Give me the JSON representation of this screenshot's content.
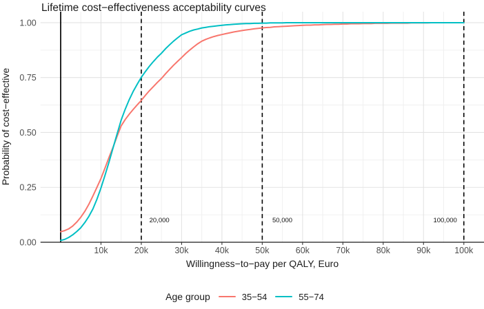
{
  "chart_data": {
    "type": "line",
    "title": "Lifetime cost−effectiveness acceptability curves",
    "xlabel": "Willingness−to−pay per QALY, Euro",
    "ylabel": "Probability of cost−effective",
    "x_range": [
      -5000,
      105000
    ],
    "y_range": [
      0,
      1.05
    ],
    "x_start": 0,
    "x_step": 1000,
    "grid": {
      "on": true,
      "x_minor_step": 5000,
      "y_minor": [
        0.125,
        0.375,
        0.625,
        0.875
      ]
    },
    "x_ticks": [
      {
        "v": 10000,
        "label": "10k"
      },
      {
        "v": 20000,
        "label": "20k"
      },
      {
        "v": 30000,
        "label": "30k"
      },
      {
        "v": 40000,
        "label": "40k"
      },
      {
        "v": 50000,
        "label": "50k"
      },
      {
        "v": 60000,
        "label": "60k"
      },
      {
        "v": 70000,
        "label": "70k"
      },
      {
        "v": 80000,
        "label": "80k"
      },
      {
        "v": 90000,
        "label": "90k"
      },
      {
        "v": 100000,
        "label": "100k"
      }
    ],
    "y_ticks": [
      {
        "v": 0,
        "label": "0.00"
      },
      {
        "v": 0.25,
        "label": "0.25"
      },
      {
        "v": 0.5,
        "label": "0.50"
      },
      {
        "v": 0.75,
        "label": "0.75"
      },
      {
        "v": 1,
        "label": "1.00"
      }
    ],
    "reference_lines": {
      "solid": [
        0
      ],
      "dashed": [
        20000,
        50000,
        100000
      ]
    },
    "annotations": [
      {
        "text": "20,000",
        "x": 22000,
        "y": 0.1,
        "anchor": "start"
      },
      {
        "text": "50,000",
        "x": 52500,
        "y": 0.1,
        "anchor": "start"
      },
      {
        "text": "100,000",
        "x": 98300,
        "y": 0.1,
        "anchor": "end"
      }
    ],
    "legend": {
      "title": "Age group",
      "position": "bottom"
    },
    "series": [
      {
        "name": "35−54",
        "color": "#F8766D",
        "values": [
          0.048,
          0.053,
          0.061,
          0.074,
          0.092,
          0.114,
          0.141,
          0.173,
          0.211,
          0.25,
          0.291,
          0.338,
          0.387,
          0.433,
          0.483,
          0.53,
          0.559,
          0.583,
          0.605,
          0.626,
          0.646,
          0.669,
          0.69,
          0.709,
          0.728,
          0.746,
          0.767,
          0.787,
          0.806,
          0.824,
          0.841,
          0.859,
          0.875,
          0.89,
          0.904,
          0.916,
          0.924,
          0.931,
          0.937,
          0.942,
          0.946,
          0.95,
          0.954,
          0.958,
          0.961,
          0.964,
          0.967,
          0.969,
          0.972,
          0.974,
          0.976,
          0.978,
          0.979,
          0.981,
          0.982,
          0.983,
          0.984,
          0.985,
          0.986,
          0.987,
          0.988,
          0.989,
          0.989,
          0.99,
          0.99,
          0.991,
          0.992,
          0.992,
          0.993,
          0.993,
          0.994,
          0.994,
          0.995,
          0.995,
          0.995,
          0.996,
          0.996,
          0.996,
          0.997,
          0.997,
          0.997,
          0.997,
          0.998,
          0.998,
          0.998,
          0.998,
          0.998,
          0.999,
          0.999,
          0.999,
          0.999,
          0.999,
          1,
          1,
          1,
          1,
          1,
          1,
          1,
          1,
          1
        ]
      },
      {
        "name": "55−74",
        "color": "#00BFC4",
        "values": [
          0.008,
          0.013,
          0.022,
          0.034,
          0.049,
          0.066,
          0.09,
          0.118,
          0.152,
          0.196,
          0.248,
          0.305,
          0.366,
          0.43,
          0.494,
          0.556,
          0.606,
          0.649,
          0.687,
          0.72,
          0.751,
          0.777,
          0.801,
          0.823,
          0.843,
          0.861,
          0.881,
          0.899,
          0.916,
          0.931,
          0.945,
          0.953,
          0.961,
          0.967,
          0.971,
          0.976,
          0.979,
          0.982,
          0.984,
          0.986,
          0.988,
          0.99,
          0.991,
          0.993,
          0.994,
          0.995,
          0.996,
          0.996,
          0.997,
          0.997,
          0.998,
          0.998,
          0.999,
          0.999,
          0.999,
          0.999,
          1,
          1,
          1,
          1,
          1,
          1,
          1,
          1,
          1,
          1,
          1,
          1,
          1,
          1,
          1,
          1,
          1,
          1,
          1,
          1,
          1,
          1,
          1,
          1,
          1,
          1,
          1,
          1,
          1,
          1,
          1,
          1,
          1,
          1,
          1,
          1,
          1,
          1,
          1,
          1,
          1,
          1,
          1,
          1,
          1
        ]
      }
    ]
  }
}
